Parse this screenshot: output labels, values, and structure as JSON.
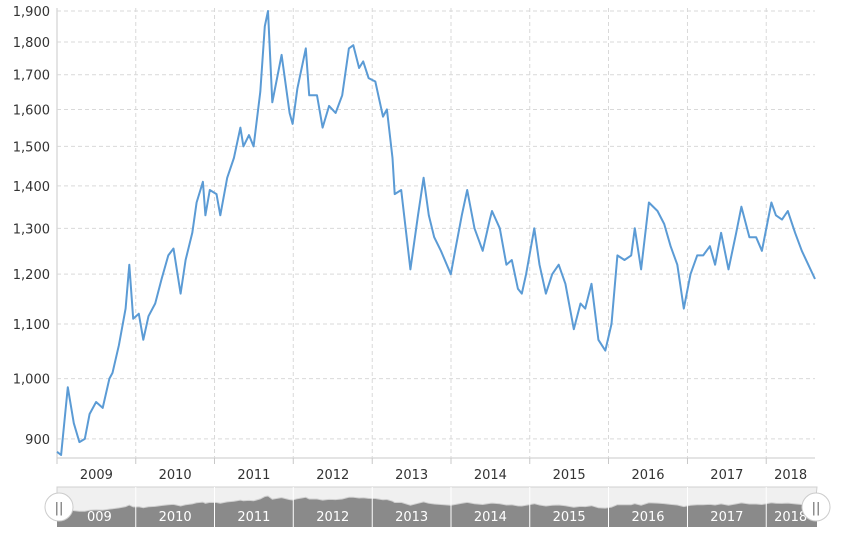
{
  "chart_data": {
    "type": "line",
    "title": "",
    "xlabel": "",
    "ylabel": "",
    "y_scale": "log",
    "ylim": [
      865,
      1910
    ],
    "xlim": [
      "2009-01-01",
      "2018-08-15"
    ],
    "grid": true,
    "y_ticks": [
      "900",
      "1,000",
      "1,100",
      "1,200",
      "1,300",
      "1,400",
      "1,500",
      "1,600",
      "1,700",
      "1,800",
      "1,900"
    ],
    "y_tick_values": [
      900,
      1000,
      1100,
      1200,
      1300,
      1400,
      1500,
      1600,
      1700,
      1800,
      1900
    ],
    "x_ticks": [
      "2009",
      "2010",
      "2011",
      "2012",
      "2013",
      "2014",
      "2015",
      "2016",
      "2017",
      "2018"
    ],
    "x_tick_dates": [
      "2009-01-01",
      "2010-01-01",
      "2011-01-01",
      "2012-01-01",
      "2013-01-01",
      "2014-01-01",
      "2015-01-01",
      "2016-01-01",
      "2017-01-01",
      "2018-01-01"
    ],
    "line_color": "#5b9bd5",
    "series": [
      {
        "x": [
          "2009-01-01",
          "2009-01-20",
          "2009-02-20",
          "2009-03-20",
          "2009-04-15",
          "2009-05-10",
          "2009-06-01",
          "2009-07-01",
          "2009-08-01",
          "2009-09-01",
          "2009-09-15",
          "2009-10-15",
          "2009-11-15",
          "2009-12-02",
          "2009-12-20",
          "2010-01-15",
          "2010-02-05",
          "2010-03-01",
          "2010-04-01",
          "2010-05-01",
          "2010-06-01",
          "2010-06-25",
          "2010-07-28",
          "2010-08-20",
          "2010-09-20",
          "2010-10-10",
          "2010-11-08",
          "2010-11-20",
          "2010-12-10",
          "2011-01-10",
          "2011-01-28",
          "2011-03-01",
          "2011-04-01",
          "2011-05-01",
          "2011-05-15",
          "2011-06-10",
          "2011-07-01",
          "2011-08-01",
          "2011-08-22",
          "2011-09-06",
          "2011-09-26",
          "2011-10-15",
          "2011-11-08",
          "2011-12-15",
          "2011-12-29",
          "2012-01-20",
          "2012-02-28",
          "2012-03-15",
          "2012-04-20",
          "2012-05-16",
          "2012-06-15",
          "2012-07-15",
          "2012-08-15",
          "2012-09-15",
          "2012-10-05",
          "2012-11-01",
          "2012-11-20",
          "2012-12-15",
          "2013-01-15",
          "2013-02-20",
          "2013-03-10",
          "2013-04-05",
          "2013-04-15",
          "2013-05-15",
          "2013-06-27",
          "2013-08-01",
          "2013-08-27",
          "2013-09-20",
          "2013-10-15",
          "2013-11-15",
          "2013-12-31",
          "2014-01-20",
          "2014-02-20",
          "2014-03-17",
          "2014-04-20",
          "2014-05-28",
          "2014-06-30",
          "2014-07-10",
          "2014-08-15",
          "2014-09-15",
          "2014-10-10",
          "2014-11-07",
          "2014-11-25",
          "2014-12-15",
          "2015-01-22",
          "2015-02-15",
          "2015-03-17",
          "2015-04-15",
          "2015-05-15",
          "2015-06-15",
          "2015-07-24",
          "2015-08-24",
          "2015-09-15",
          "2015-10-14",
          "2015-11-15",
          "2015-12-17",
          "2016-01-15",
          "2016-02-11",
          "2016-03-15",
          "2016-04-15",
          "2016-05-02",
          "2016-05-31",
          "2016-07-06",
          "2016-08-15",
          "2016-09-15",
          "2016-10-15",
          "2016-11-15",
          "2016-12-15",
          "2017-01-15",
          "2017-02-15",
          "2017-03-15",
          "2017-04-15",
          "2017-05-09",
          "2017-06-06",
          "2017-07-10",
          "2017-08-15",
          "2017-09-08",
          "2017-10-15",
          "2017-11-15",
          "2017-12-12",
          "2018-01-25",
          "2018-02-15",
          "2018-03-15",
          "2018-04-11",
          "2018-05-15",
          "2018-06-15",
          "2018-07-15",
          "2018-08-15"
        ],
        "y": [
          880,
          875,
          985,
          925,
          895,
          900,
          940,
          960,
          950,
          1000,
          1010,
          1060,
          1130,
          1220,
          1110,
          1120,
          1070,
          1115,
          1140,
          1190,
          1240,
          1255,
          1160,
          1230,
          1290,
          1360,
          1410,
          1330,
          1390,
          1380,
          1330,
          1420,
          1470,
          1550,
          1500,
          1530,
          1500,
          1650,
          1850,
          1900,
          1620,
          1680,
          1760,
          1590,
          1560,
          1660,
          1780,
          1640,
          1640,
          1550,
          1610,
          1590,
          1640,
          1780,
          1790,
          1720,
          1740,
          1690,
          1680,
          1580,
          1600,
          1470,
          1380,
          1390,
          1210,
          1330,
          1420,
          1330,
          1280,
          1250,
          1200,
          1250,
          1330,
          1390,
          1300,
          1250,
          1320,
          1340,
          1300,
          1220,
          1230,
          1170,
          1160,
          1200,
          1300,
          1220,
          1160,
          1200,
          1220,
          1180,
          1090,
          1140,
          1130,
          1180,
          1070,
          1050,
          1100,
          1240,
          1230,
          1240,
          1300,
          1210,
          1360,
          1340,
          1310,
          1260,
          1220,
          1130,
          1200,
          1240,
          1240,
          1260,
          1220,
          1290,
          1210,
          1290,
          1350,
          1280,
          1280,
          1250,
          1360,
          1330,
          1320,
          1340,
          1290,
          1250,
          1220,
          1190
        ]
      }
    ]
  },
  "navigator": {
    "labels": [
      "009",
      "2010",
      "2011",
      "2012",
      "2013",
      "2014",
      "2015",
      "2016",
      "2017",
      "2018"
    ],
    "left_handle": "||",
    "right_handle": "||"
  }
}
